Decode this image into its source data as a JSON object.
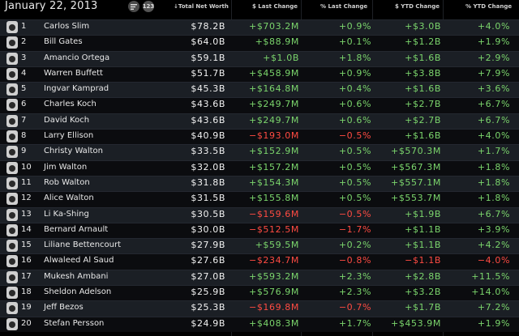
{
  "header": {
    "date": "January 22, 2013",
    "icon_list": "list-icon",
    "icon_numbers": "123",
    "columns": {
      "net_worth": "↓Total Net Worth",
      "last_change": "$ Last Change",
      "pct_last_change": "% Last Change",
      "ytd_change": "$ YTD Change",
      "pct_ytd_change": "% YTD Change"
    }
  },
  "rows": [
    {
      "rank": "1",
      "name": "Carlos Slim",
      "worth": "$78.2B",
      "last": "+$703.2M",
      "pct_last": "+0.9%",
      "ytd": "+$3.0B",
      "pct_ytd": "+4.0%"
    },
    {
      "rank": "2",
      "name": "Bill Gates",
      "worth": "$64.0B",
      "last": "+$88.9M",
      "pct_last": "+0.1%",
      "ytd": "+$1.2B",
      "pct_ytd": "+1.9%"
    },
    {
      "rank": "3",
      "name": "Amancio Ortega",
      "worth": "$59.1B",
      "last": "+$1.0B",
      "pct_last": "+1.8%",
      "ytd": "+$1.6B",
      "pct_ytd": "+2.9%"
    },
    {
      "rank": "4",
      "name": "Warren Buffett",
      "worth": "$51.7B",
      "last": "+$458.9M",
      "pct_last": "+0.9%",
      "ytd": "+$3.8B",
      "pct_ytd": "+7.9%"
    },
    {
      "rank": "5",
      "name": "Ingvar Kamprad",
      "worth": "$45.3B",
      "last": "+$164.8M",
      "pct_last": "+0.4%",
      "ytd": "+$1.6B",
      "pct_ytd": "+3.6%"
    },
    {
      "rank": "6",
      "name": "Charles Koch",
      "worth": "$43.6B",
      "last": "+$249.7M",
      "pct_last": "+0.6%",
      "ytd": "+$2.7B",
      "pct_ytd": "+6.7%"
    },
    {
      "rank": "7",
      "name": "David Koch",
      "worth": "$43.6B",
      "last": "+$249.7M",
      "pct_last": "+0.6%",
      "ytd": "+$2.7B",
      "pct_ytd": "+6.7%"
    },
    {
      "rank": "8",
      "name": "Larry Ellison",
      "worth": "$40.9B",
      "last": "−$193.0M",
      "pct_last": "−0.5%",
      "ytd": "+$1.6B",
      "pct_ytd": "+4.0%"
    },
    {
      "rank": "9",
      "name": "Christy Walton",
      "worth": "$33.5B",
      "last": "+$152.9M",
      "pct_last": "+0.5%",
      "ytd": "+$570.3M",
      "pct_ytd": "+1.7%"
    },
    {
      "rank": "10",
      "name": "Jim Walton",
      "worth": "$32.0B",
      "last": "+$157.2M",
      "pct_last": "+0.5%",
      "ytd": "+$567.3M",
      "pct_ytd": "+1.8%"
    },
    {
      "rank": "11",
      "name": "Rob Walton",
      "worth": "$31.8B",
      "last": "+$154.3M",
      "pct_last": "+0.5%",
      "ytd": "+$557.1M",
      "pct_ytd": "+1.8%"
    },
    {
      "rank": "12",
      "name": "Alice Walton",
      "worth": "$31.5B",
      "last": "+$155.8M",
      "pct_last": "+0.5%",
      "ytd": "+$553.7M",
      "pct_ytd": "+1.8%"
    },
    {
      "rank": "13",
      "name": "Li Ka-Shing",
      "worth": "$30.5B",
      "last": "−$159.6M",
      "pct_last": "−0.5%",
      "ytd": "+$1.9B",
      "pct_ytd": "+6.7%"
    },
    {
      "rank": "14",
      "name": "Bernard Arnault",
      "worth": "$30.0B",
      "last": "−$512.5M",
      "pct_last": "−1.7%",
      "ytd": "+$1.1B",
      "pct_ytd": "+3.9%"
    },
    {
      "rank": "15",
      "name": "Liliane Bettencourt",
      "worth": "$27.9B",
      "last": "+$59.5M",
      "pct_last": "+0.2%",
      "ytd": "+$1.1B",
      "pct_ytd": "+4.2%"
    },
    {
      "rank": "16",
      "name": "Alwaleed Al Saud",
      "worth": "$27.6B",
      "last": "−$234.7M",
      "pct_last": "−0.8%",
      "ytd": "−$1.1B",
      "pct_ytd": "−4.0%"
    },
    {
      "rank": "17",
      "name": "Mukesh Ambani",
      "worth": "$27.0B",
      "last": "+$593.2M",
      "pct_last": "+2.3%",
      "ytd": "+$2.8B",
      "pct_ytd": "+11.5%"
    },
    {
      "rank": "18",
      "name": "Sheldon Adelson",
      "worth": "$25.9B",
      "last": "+$576.9M",
      "pct_last": "+2.3%",
      "ytd": "+$3.2B",
      "pct_ytd": "+14.0%"
    },
    {
      "rank": "19",
      "name": "Jeff Bezos",
      "worth": "$25.3B",
      "last": "−$169.8M",
      "pct_last": "−0.7%",
      "ytd": "+$1.7B",
      "pct_ytd": "+7.2%"
    },
    {
      "rank": "20",
      "name": "Stefan Persson",
      "worth": "$24.9B",
      "last": "+$408.3M",
      "pct_last": "+1.7%",
      "ytd": "+$453.9M",
      "pct_ytd": "+1.9%"
    }
  ],
  "colors": {
    "positive": "#7bd56c",
    "negative": "#ff4b42",
    "row_odd": "#1b1f25",
    "row_even": "#0b0c0f"
  }
}
